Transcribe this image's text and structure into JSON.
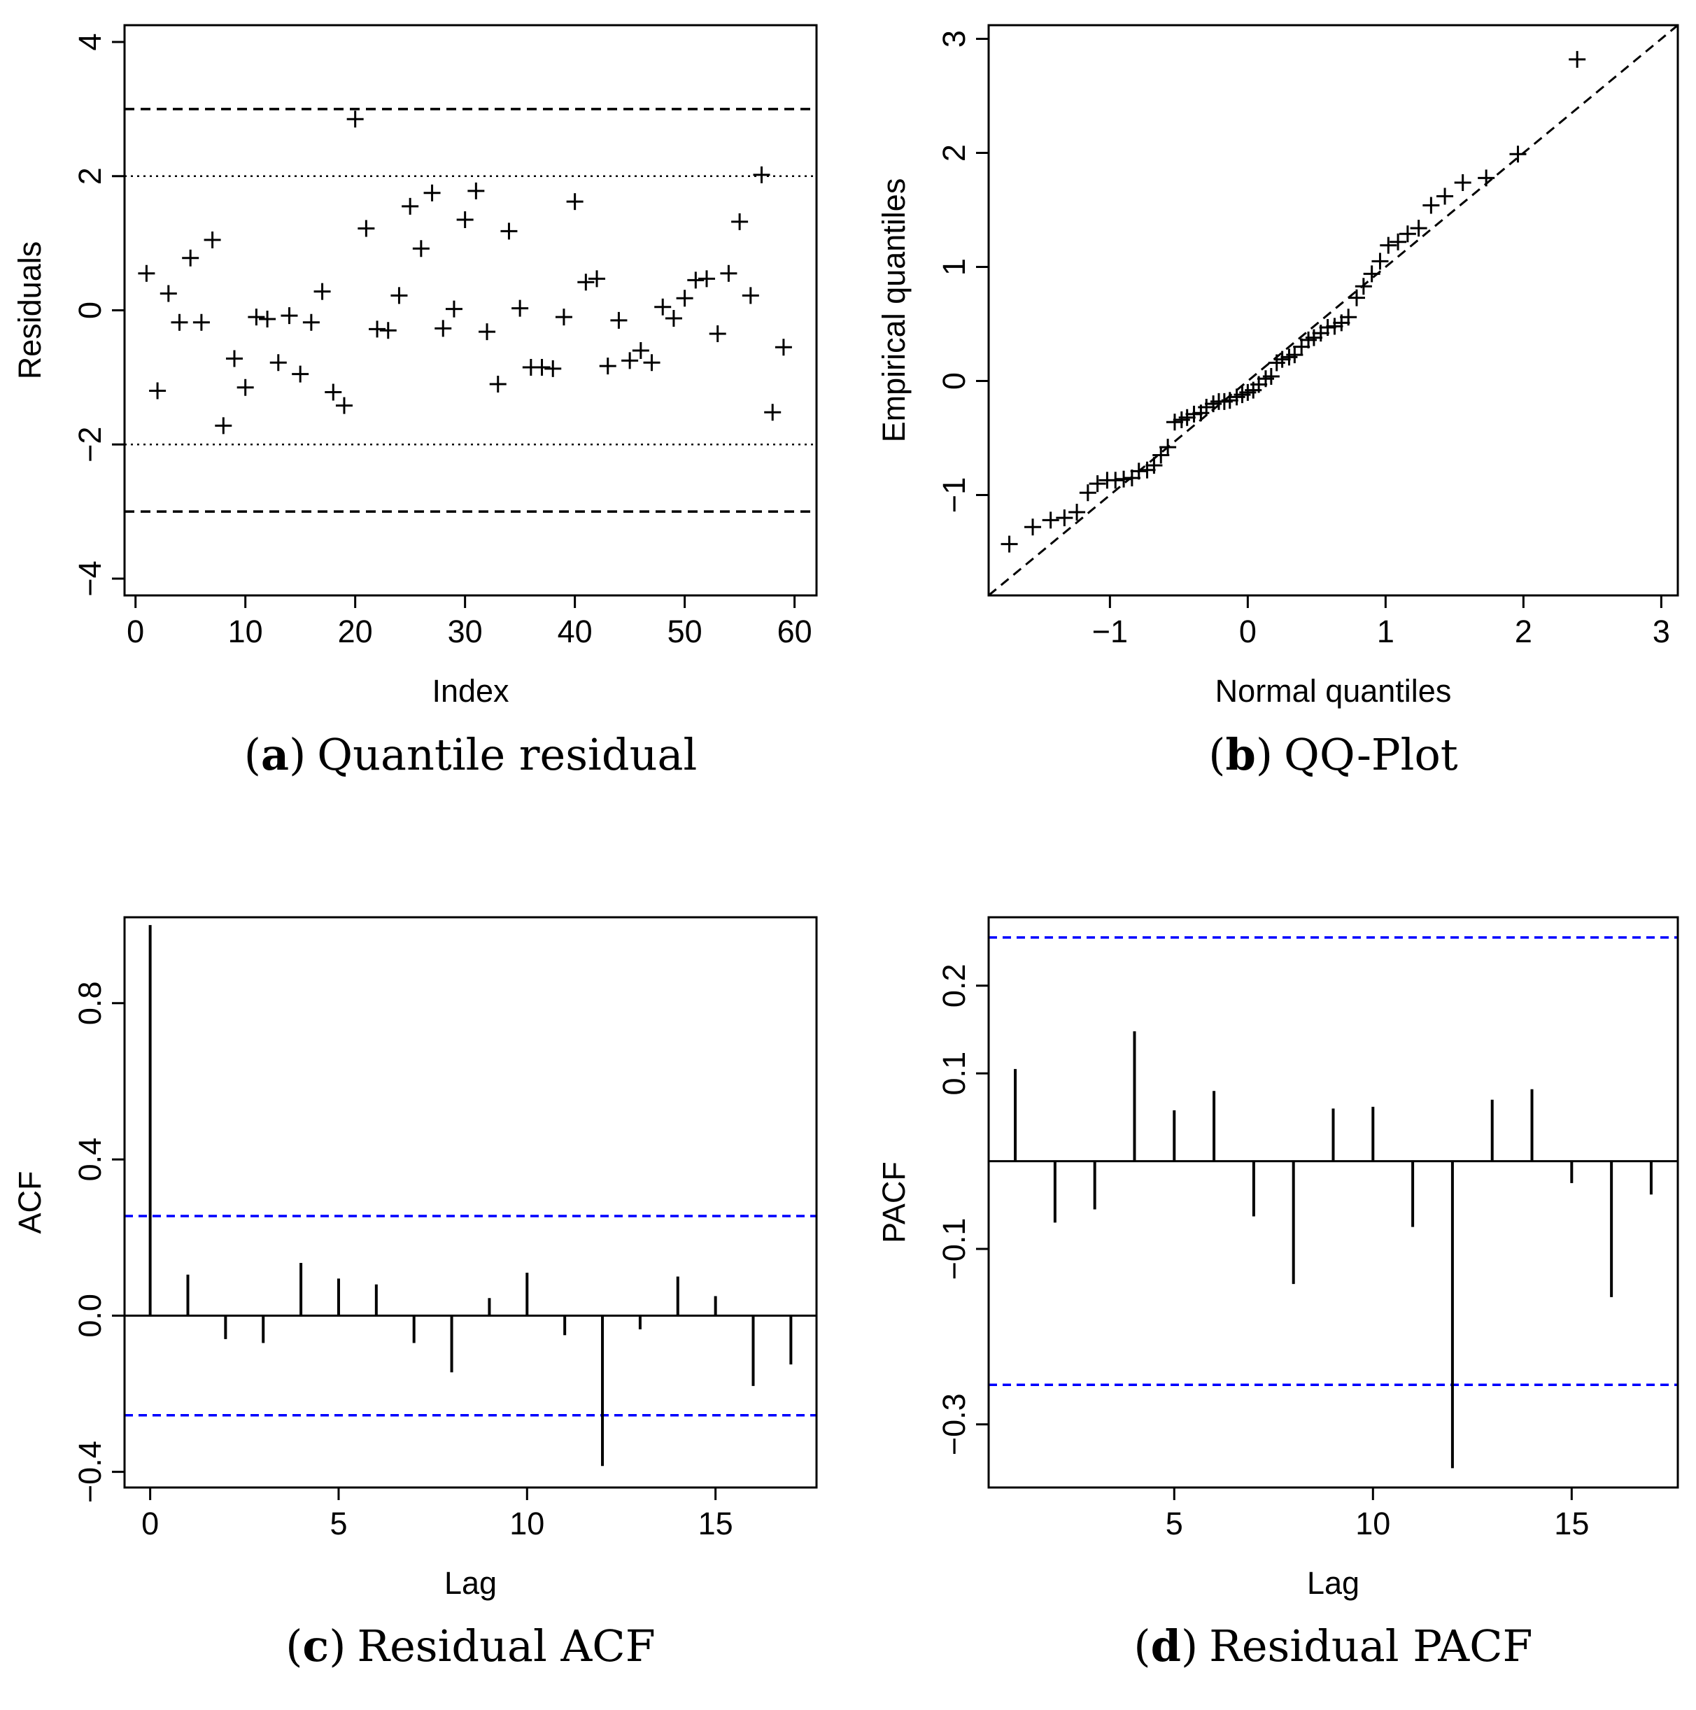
{
  "chart_data": [
    {
      "id": "a",
      "type": "scatter",
      "marker": "+",
      "caption": {
        "letter": "a",
        "text": "Quantile residual"
      },
      "xlabel": "Index",
      "ylabel": "Residuals",
      "xlim": [
        -1,
        62
      ],
      "ylim": [
        -4.25,
        4.25
      ],
      "xticks": [
        0,
        10,
        20,
        30,
        40,
        50,
        60
      ],
      "xtick_labels": [
        "0",
        "10",
        "20",
        "30",
        "40",
        "50",
        "60"
      ],
      "yticks": [
        -4,
        -2,
        0,
        2,
        4
      ],
      "ytick_labels": [
        "−4",
        "−2",
        "0",
        "2",
        "4"
      ],
      "hlines": [
        {
          "y": 3,
          "style": "dashed",
          "color": "#000000"
        },
        {
          "y": -3,
          "style": "dashed",
          "color": "#000000"
        },
        {
          "y": 2,
          "style": "dotted",
          "color": "#000000"
        },
        {
          "y": -2,
          "style": "dotted",
          "color": "#000000"
        }
      ],
      "x": [
        1,
        2,
        3,
        4,
        5,
        6,
        7,
        8,
        9,
        10,
        11,
        12,
        13,
        14,
        15,
        16,
        17,
        18,
        19,
        20,
        21,
        22,
        23,
        24,
        25,
        26,
        27,
        28,
        29,
        30,
        31,
        32,
        33,
        34,
        35,
        36,
        37,
        38,
        39,
        40,
        41,
        42,
        43,
        44,
        45,
        46,
        47,
        48,
        49,
        50,
        51,
        52,
        53,
        54,
        55,
        56,
        57,
        58,
        59
      ],
      "y": [
        0.55,
        -1.2,
        0.25,
        -0.18,
        0.78,
        -0.18,
        1.05,
        -1.72,
        -0.72,
        -1.15,
        -0.1,
        -0.13,
        -0.78,
        -0.08,
        -0.95,
        -0.18,
        0.28,
        -1.22,
        -1.42,
        2.85,
        1.22,
        -0.28,
        -0.3,
        0.22,
        1.55,
        0.92,
        1.75,
        -0.27,
        0.02,
        1.35,
        1.78,
        -0.32,
        -1.1,
        1.18,
        0.03,
        -0.85,
        -0.85,
        -0.87,
        -0.1,
        1.62,
        0.42,
        0.47,
        -0.83,
        -0.15,
        -0.75,
        -0.6,
        -0.78,
        0.05,
        -0.12,
        0.18,
        0.45,
        0.47,
        -0.35,
        0.55,
        1.32,
        0.22,
        2.02,
        -1.52,
        -0.55
      ]
    },
    {
      "id": "b",
      "type": "scatter",
      "marker": "+",
      "caption": {
        "letter": "b",
        "text": "QQ-Plot"
      },
      "xlabel": "Normal quantiles",
      "ylabel": "Empirical quantiles",
      "xlim": [
        -1.88,
        3.12
      ],
      "ylim": [
        -1.88,
        3.12
      ],
      "xticks": [
        -1,
        0,
        1,
        2,
        3
      ],
      "xtick_labels": [
        "−1",
        "0",
        "1",
        "2",
        "3"
      ],
      "yticks": [
        -1,
        0,
        1,
        2,
        3
      ],
      "ytick_labels": [
        "−1",
        "0",
        "1",
        "2",
        "3"
      ],
      "reference_line": {
        "slope": 1,
        "intercept": 0,
        "style": "dashed",
        "color": "#000000"
      },
      "x": [
        -1.73,
        -1.56,
        -1.43,
        -1.33,
        -1.24,
        -1.16,
        -1.09,
        -1.02,
        -0.96,
        -0.9,
        -0.84,
        -0.79,
        -0.73,
        -0.68,
        -0.63,
        -0.58,
        -0.53,
        -0.48,
        -0.44,
        -0.39,
        -0.34,
        -0.3,
        -0.25,
        -0.21,
        -0.17,
        -0.13,
        -0.08,
        -0.04,
        0,
        0.04,
        0.08,
        0.13,
        0.17,
        0.21,
        0.25,
        0.3,
        0.34,
        0.39,
        0.44,
        0.48,
        0.53,
        0.58,
        0.63,
        0.68,
        0.73,
        0.79,
        0.84,
        0.9,
        0.96,
        1.02,
        1.09,
        1.16,
        1.24,
        1.33,
        1.43,
        1.56,
        1.73,
        1.96,
        2.39
      ],
      "y": [
        -1.43,
        -1.28,
        -1.22,
        -1.2,
        -1.15,
        -0.98,
        -0.9,
        -0.87,
        -0.87,
        -0.86,
        -0.85,
        -0.79,
        -0.78,
        -0.74,
        -0.65,
        -0.58,
        -0.36,
        -0.34,
        -0.32,
        -0.29,
        -0.28,
        -0.23,
        -0.2,
        -0.18,
        -0.18,
        -0.17,
        -0.14,
        -0.12,
        -0.1,
        -0.08,
        -0.03,
        0.02,
        0.04,
        0.16,
        0.19,
        0.21,
        0.23,
        0.3,
        0.36,
        0.38,
        0.42,
        0.47,
        0.48,
        0.51,
        0.56,
        0.73,
        0.83,
        0.94,
        1.05,
        1.19,
        1.22,
        1.29,
        1.34,
        1.54,
        1.62,
        1.74,
        1.78,
        1.99,
        2.82
      ]
    },
    {
      "id": "c",
      "type": "bar",
      "style": "vertical-lines",
      "caption": {
        "letter": "c",
        "text": "Residual ACF"
      },
      "xlabel": "Lag",
      "ylabel": "ACF",
      "xlim": [
        -0.68,
        17.68
      ],
      "ylim": [
        -0.44,
        1.02
      ],
      "xticks": [
        0,
        5,
        10,
        15
      ],
      "xtick_labels": [
        "0",
        "5",
        "10",
        "15"
      ],
      "yticks": [
        -0.4,
        0.0,
        0.4,
        0.8
      ],
      "ytick_labels": [
        "−0.4",
        "0.0",
        "0.4",
        "0.8"
      ],
      "ci": 0.255,
      "ci_color": "#0000ff",
      "lags": [
        0,
        1,
        2,
        3,
        4,
        5,
        6,
        7,
        8,
        9,
        10,
        11,
        12,
        13,
        14,
        15,
        16,
        17
      ],
      "values": [
        1.0,
        0.105,
        -0.06,
        -0.07,
        0.135,
        0.095,
        0.08,
        -0.07,
        -0.145,
        0.045,
        0.11,
        -0.05,
        -0.385,
        -0.035,
        0.1,
        0.05,
        -0.18,
        -0.125
      ]
    },
    {
      "id": "d",
      "type": "bar",
      "style": "vertical-lines",
      "caption": {
        "letter": "d",
        "text": "Residual PACF"
      },
      "xlabel": "Lag",
      "ylabel": "PACF",
      "xlim": [
        0.33,
        17.67
      ],
      "ylim": [
        -0.372,
        0.278
      ],
      "xticks": [
        5,
        10,
        15
      ],
      "xtick_labels": [
        "5",
        "10",
        "15"
      ],
      "yticks": [
        -0.3,
        -0.1,
        0.1,
        0.2
      ],
      "ytick_labels": [
        "−0.3",
        "−0.1",
        "0.1",
        "0.2"
      ],
      "ci": 0.255,
      "ci_color": "#0000ff",
      "lags": [
        1,
        2,
        3,
        4,
        5,
        6,
        7,
        8,
        9,
        10,
        11,
        12,
        13,
        14,
        15,
        16,
        17
      ],
      "values": [
        0.105,
        -0.07,
        -0.055,
        0.148,
        0.058,
        0.08,
        -0.063,
        -0.14,
        0.06,
        0.062,
        -0.075,
        -0.35,
        0.07,
        0.082,
        -0.025,
        -0.155,
        -0.038
      ]
    }
  ]
}
